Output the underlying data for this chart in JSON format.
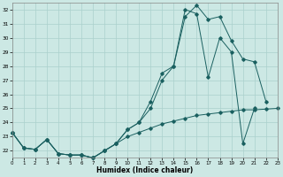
{
  "xlabel": "Humidex (Indice chaleur)",
  "background_color": "#cce8e4",
  "grid_color": "#aad0cc",
  "line_color": "#1a6060",
  "xlim": [
    0,
    23
  ],
  "ylim": [
    21.5,
    32.5
  ],
  "xticks": [
    0,
    1,
    2,
    3,
    4,
    5,
    6,
    7,
    8,
    9,
    10,
    11,
    12,
    13,
    14,
    15,
    16,
    17,
    18,
    19,
    20,
    21,
    22,
    23
  ],
  "yticks": [
    22,
    23,
    24,
    25,
    26,
    27,
    28,
    29,
    30,
    31,
    32
  ],
  "series1_x": [
    0,
    1,
    2,
    3,
    4,
    5,
    6,
    7,
    8,
    9,
    10,
    11,
    12,
    13,
    14,
    15,
    16,
    17,
    18,
    19,
    20,
    21,
    22,
    23
  ],
  "series1_y": [
    23.3,
    22.2,
    22.1,
    22.8,
    21.8,
    21.7,
    21.7,
    21.5,
    22.0,
    22.5,
    23.0,
    23.3,
    23.6,
    23.9,
    24.1,
    24.3,
    24.5,
    24.6,
    24.7,
    24.8,
    24.9,
    24.9,
    24.95,
    25.0
  ],
  "series2_x": [
    0,
    1,
    2,
    3,
    4,
    5,
    6,
    7,
    8,
    9,
    10,
    11,
    12,
    13,
    14,
    15,
    16,
    17,
    18,
    19,
    20,
    21,
    22,
    23
  ],
  "series2_y": [
    23.3,
    22.2,
    22.1,
    22.8,
    21.8,
    21.7,
    21.7,
    21.5,
    22.0,
    22.5,
    23.5,
    24.0,
    25.5,
    27.5,
    28.0,
    31.5,
    32.3,
    31.3,
    31.5,
    29.8,
    28.5,
    28.3,
    25.5,
    null
  ],
  "series3_x": [
    0,
    1,
    2,
    3,
    4,
    5,
    6,
    7,
    8,
    9,
    10,
    11,
    12,
    13,
    14,
    15,
    16,
    17,
    18,
    19,
    20,
    21
  ],
  "series3_y": [
    23.3,
    22.2,
    22.1,
    22.8,
    21.8,
    21.7,
    21.7,
    21.5,
    22.0,
    22.5,
    23.5,
    24.0,
    25.0,
    27.0,
    28.0,
    32.0,
    31.7,
    27.2,
    30.0,
    29.0,
    22.5,
    25.0
  ]
}
